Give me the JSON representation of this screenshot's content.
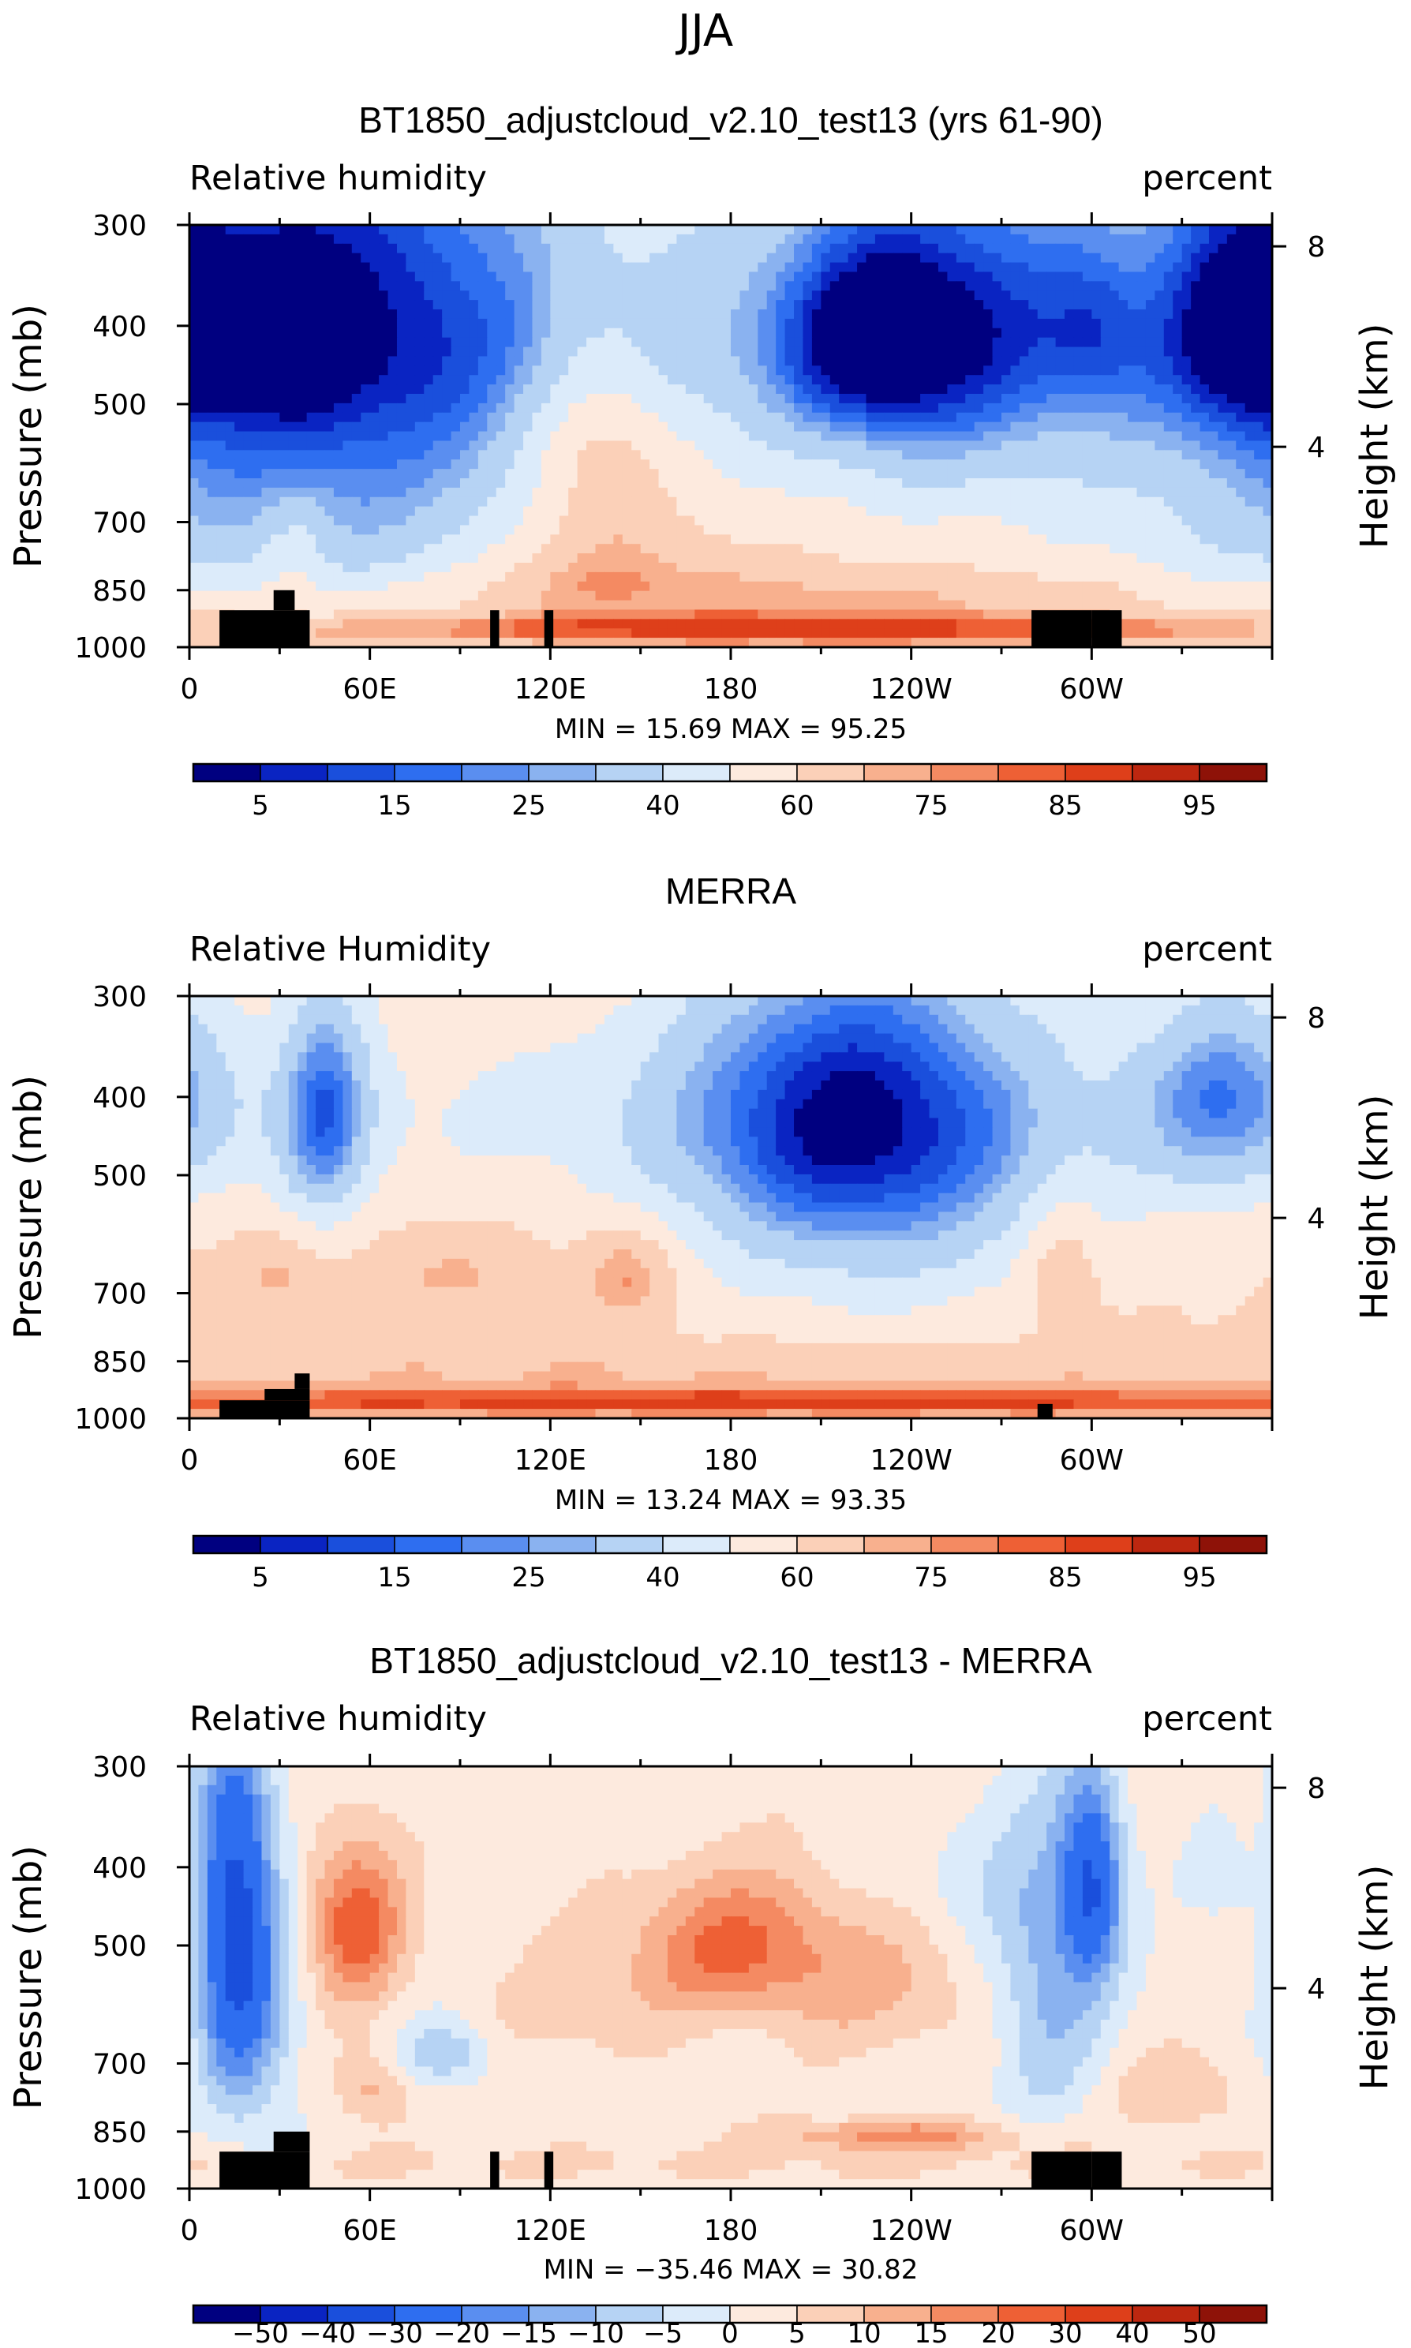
{
  "figure": {
    "season": "JJA"
  },
  "colors": {
    "abs_scale": [
      "#000080",
      "#0a24c2",
      "#1a4fdc",
      "#2e6ef0",
      "#5a8ef0",
      "#8ab2f0",
      "#b6d3f4",
      "#dcebfa",
      "#fdeade",
      "#fbd0b8",
      "#f8b08e",
      "#f48a62",
      "#ee6035",
      "#de3f1a",
      "#bd2710",
      "#8e1208"
    ],
    "diff_scale": [
      "#000080",
      "#0a24c2",
      "#1a4fdc",
      "#2e6ef0",
      "#5a8ef0",
      "#8ab2f0",
      "#b6d3f4",
      "#dcebfa",
      "#fdeade",
      "#fbd0b8",
      "#f8b08e",
      "#f48a62",
      "#ee6035",
      "#de3f1a",
      "#bd2710",
      "#8e1208"
    ],
    "mask": "#000000"
  },
  "chart_data": [
    {
      "type": "heatmap",
      "title": "BT1850_adjustcloud_v2.10_test13 (yrs 61-90)",
      "left_label": "Relative humidity",
      "right_label": "percent",
      "ylabel": "Pressure (mb)",
      "y2label": "Height (km)",
      "x_ticks": [
        "0",
        "60E",
        "120E",
        "180",
        "120W",
        "60W"
      ],
      "x_tick_lon": [
        0,
        60,
        120,
        180,
        240,
        300
      ],
      "xlim": [
        0,
        360
      ],
      "y_ticks": [
        "300",
        "400",
        "500",
        "700",
        "850",
        "1000"
      ],
      "y_tick_p": [
        300,
        400,
        500,
        700,
        850,
        1000
      ],
      "ylim": [
        300,
        1000
      ],
      "y2_ticks": [
        "8",
        "4"
      ],
      "y2_tick_km": [
        8,
        4
      ],
      "stats": "MIN =   15.69   MAX =   95.25",
      "levels": [
        5,
        10,
        15,
        20,
        25,
        30,
        40,
        50,
        60,
        70,
        75,
        80,
        85,
        90,
        95
      ],
      "colorbar_labels": [
        "5",
        "15",
        "25",
        "40",
        "60",
        "75",
        "85",
        "95"
      ],
      "colorbar_label_index": [
        0,
        2,
        4,
        6,
        8,
        10,
        12,
        14
      ],
      "min": 15.69,
      "max": 95.25,
      "mask": [
        [
          10,
          40,
          900,
          1000
        ],
        [
          28,
          35,
          850,
          900
        ],
        [
          300,
          310,
          900,
          1000
        ],
        [
          280,
          300,
          900,
          1000
        ],
        [
          100,
          103,
          900,
          1000
        ],
        [
          118,
          121,
          900,
          1000
        ]
      ],
      "features": [
        {
          "lon": 40,
          "p": 400,
          "dlon": 100,
          "dp": 500,
          "a": -50
        },
        {
          "lon": 0,
          "p": 400,
          "dlon": 18,
          "dp": 110,
          "a": -10
        },
        {
          "lon": 35,
          "p": 400,
          "dlon": 15,
          "dp": 90,
          "a": -15
        },
        {
          "lon": 240,
          "p": 400,
          "dlon": 55,
          "dp": 230,
          "a": -45
        },
        {
          "lon": 225,
          "p": 420,
          "dlon": 25,
          "dp": 100,
          "a": -18
        },
        {
          "lon": 348,
          "p": 400,
          "dlon": 22,
          "dp": 130,
          "a": -18
        },
        {
          "lon": 300,
          "p": 400,
          "dlon": 15,
          "dp": 90,
          "a": -10
        },
        {
          "lon": 135,
          "p": 560,
          "dlon": 25,
          "dp": 170,
          "a": 22
        },
        {
          "lon": 135,
          "p": 790,
          "dlon": 45,
          "dp": 110,
          "a": 15
        },
        {
          "lon": 35,
          "p": 750,
          "dlon": 12,
          "dp": 120,
          "a": 12
        },
        {
          "lon": 180,
          "p": 950,
          "dlon": 300,
          "dp": 45,
          "a": 28
        },
        {
          "lon": 180,
          "p": 860,
          "dlon": 300,
          "dp": 65,
          "a": 10
        }
      ]
    },
    {
      "type": "heatmap",
      "title": "MERRA",
      "left_label": "Relative Humidity",
      "right_label": "percent",
      "ylabel": "Pressure (mb)",
      "y2label": "Height (km)",
      "x_ticks": [
        "0",
        "60E",
        "120E",
        "180",
        "120W",
        "60W"
      ],
      "x_tick_lon": [
        0,
        60,
        120,
        180,
        240,
        300
      ],
      "xlim": [
        0,
        360
      ],
      "y_ticks": [
        "300",
        "400",
        "500",
        "700",
        "850",
        "1000"
      ],
      "y_tick_p": [
        300,
        400,
        500,
        700,
        850,
        1000
      ],
      "ylim": [
        300,
        1000
      ],
      "y2_ticks": [
        "8",
        "4"
      ],
      "y2_tick_km": [
        8,
        4
      ],
      "stats": "MIN =   13.24   MAX =   93.35",
      "levels": [
        5,
        10,
        15,
        20,
        25,
        30,
        40,
        50,
        60,
        70,
        75,
        80,
        85,
        90,
        95
      ],
      "colorbar_labels": [
        "5",
        "15",
        "25",
        "40",
        "60",
        "75",
        "85",
        "95"
      ],
      "colorbar_label_index": [
        0,
        2,
        4,
        6,
        8,
        10,
        12,
        14
      ],
      "min": 13.24,
      "max": 93.35,
      "mask": [
        [
          10,
          40,
          950,
          1000
        ],
        [
          25,
          40,
          920,
          950
        ],
        [
          35,
          40,
          880,
          920
        ],
        [
          282,
          287,
          960,
          1000
        ]
      ],
      "features": [
        {
          "lon": 220,
          "p": 420,
          "dlon": 60,
          "dp": 220,
          "a": -45
        },
        {
          "lon": 45,
          "p": 420,
          "dlon": 15,
          "dp": 150,
          "a": -35
        },
        {
          "lon": 345,
          "p": 400,
          "dlon": 30,
          "dp": 120,
          "a": -30
        },
        {
          "lon": 240,
          "p": 600,
          "dlon": 80,
          "dp": 200,
          "a": -10
        },
        {
          "lon": 145,
          "p": 660,
          "dlon": 15,
          "dp": 90,
          "a": 18
        },
        {
          "lon": 290,
          "p": 650,
          "dlon": 12,
          "dp": 130,
          "a": 15
        },
        {
          "lon": 85,
          "p": 660,
          "dlon": 25,
          "dp": 70,
          "a": 10
        },
        {
          "lon": 28,
          "p": 660,
          "dlon": 15,
          "dp": 80,
          "a": 10
        },
        {
          "lon": 180,
          "p": 955,
          "dlon": 300,
          "dp": 40,
          "a": 26
        },
        {
          "lon": 180,
          "p": 870,
          "dlon": 300,
          "dp": 60,
          "a": 8
        }
      ]
    },
    {
      "type": "heatmap",
      "title": "BT1850_adjustcloud_v2.10_test13 - MERRA",
      "left_label": "Relative humidity",
      "right_label": "percent",
      "ylabel": "Pressure (mb)",
      "y2label": "Height (km)",
      "x_ticks": [
        "0",
        "60E",
        "120E",
        "180",
        "120W",
        "60W"
      ],
      "x_tick_lon": [
        0,
        60,
        120,
        180,
        240,
        300
      ],
      "xlim": [
        0,
        360
      ],
      "y_ticks": [
        "300",
        "400",
        "500",
        "700",
        "850",
        "1000"
      ],
      "y_tick_p": [
        300,
        400,
        500,
        700,
        850,
        1000
      ],
      "ylim": [
        300,
        1000
      ],
      "y2_ticks": [
        "8",
        "4"
      ],
      "y2_tick_km": [
        8,
        4
      ],
      "stats": "MIN = −35.46   MAX =   30.82",
      "levels": [
        -50,
        -40,
        -30,
        -20,
        -15,
        -10,
        -5,
        0,
        5,
        10,
        15,
        20,
        30,
        40,
        50
      ],
      "colorbar_labels": [
        "−50",
        "−40",
        "−30",
        "−20",
        "−15",
        "−10",
        "−5",
        "0",
        "5",
        "10",
        "15",
        "20",
        "30",
        "40",
        "50"
      ],
      "colorbar_label_index": [
        0,
        1,
        2,
        3,
        4,
        5,
        6,
        7,
        8,
        9,
        10,
        11,
        12,
        13,
        14
      ],
      "min": -35.46,
      "max": 30.82,
      "mask": [
        [
          10,
          40,
          900,
          1000
        ],
        [
          28,
          40,
          850,
          900
        ],
        [
          300,
          310,
          900,
          1000
        ],
        [
          280,
          300,
          900,
          1000
        ],
        [
          100,
          103,
          900,
          1000
        ],
        [
          118,
          121,
          900,
          1000
        ]
      ],
      "features": [
        {
          "lon": 15,
          "p": 460,
          "dlon": 12,
          "dp": 220,
          "a": -30
        },
        {
          "lon": 20,
          "p": 600,
          "dlon": 16,
          "dp": 280,
          "a": -12
        },
        {
          "lon": 55,
          "p": 470,
          "dlon": 16,
          "dp": 110,
          "a": 22
        },
        {
          "lon": 60,
          "p": 750,
          "dlon": 12,
          "dp": 80,
          "a": 10
        },
        {
          "lon": 300,
          "p": 420,
          "dlon": 10,
          "dp": 120,
          "a": -30
        },
        {
          "lon": 285,
          "p": 550,
          "dlon": 18,
          "dp": 220,
          "a": -15
        },
        {
          "lon": 180,
          "p": 500,
          "dlon": 35,
          "dp": 100,
          "a": 18
        },
        {
          "lon": 230,
          "p": 560,
          "dlon": 40,
          "dp": 120,
          "a": 8
        },
        {
          "lon": 85,
          "p": 680,
          "dlon": 15,
          "dp": 60,
          "a": -12
        },
        {
          "lon": 130,
          "p": 600,
          "dlon": 30,
          "dp": 90,
          "a": 6
        },
        {
          "lon": 235,
          "p": 860,
          "dlon": 40,
          "dp": 40,
          "a": 15
        },
        {
          "lon": 330,
          "p": 760,
          "dlon": 20,
          "dp": 80,
          "a": 8
        },
        {
          "lon": 255,
          "p": 420,
          "dlon": 25,
          "dp": 90,
          "a": -5
        },
        {
          "lon": 345,
          "p": 420,
          "dlon": 12,
          "dp": 60,
          "a": -4
        },
        {
          "lon": 180,
          "p": 930,
          "dlon": 300,
          "dp": 50,
          "a": 4
        }
      ]
    }
  ]
}
